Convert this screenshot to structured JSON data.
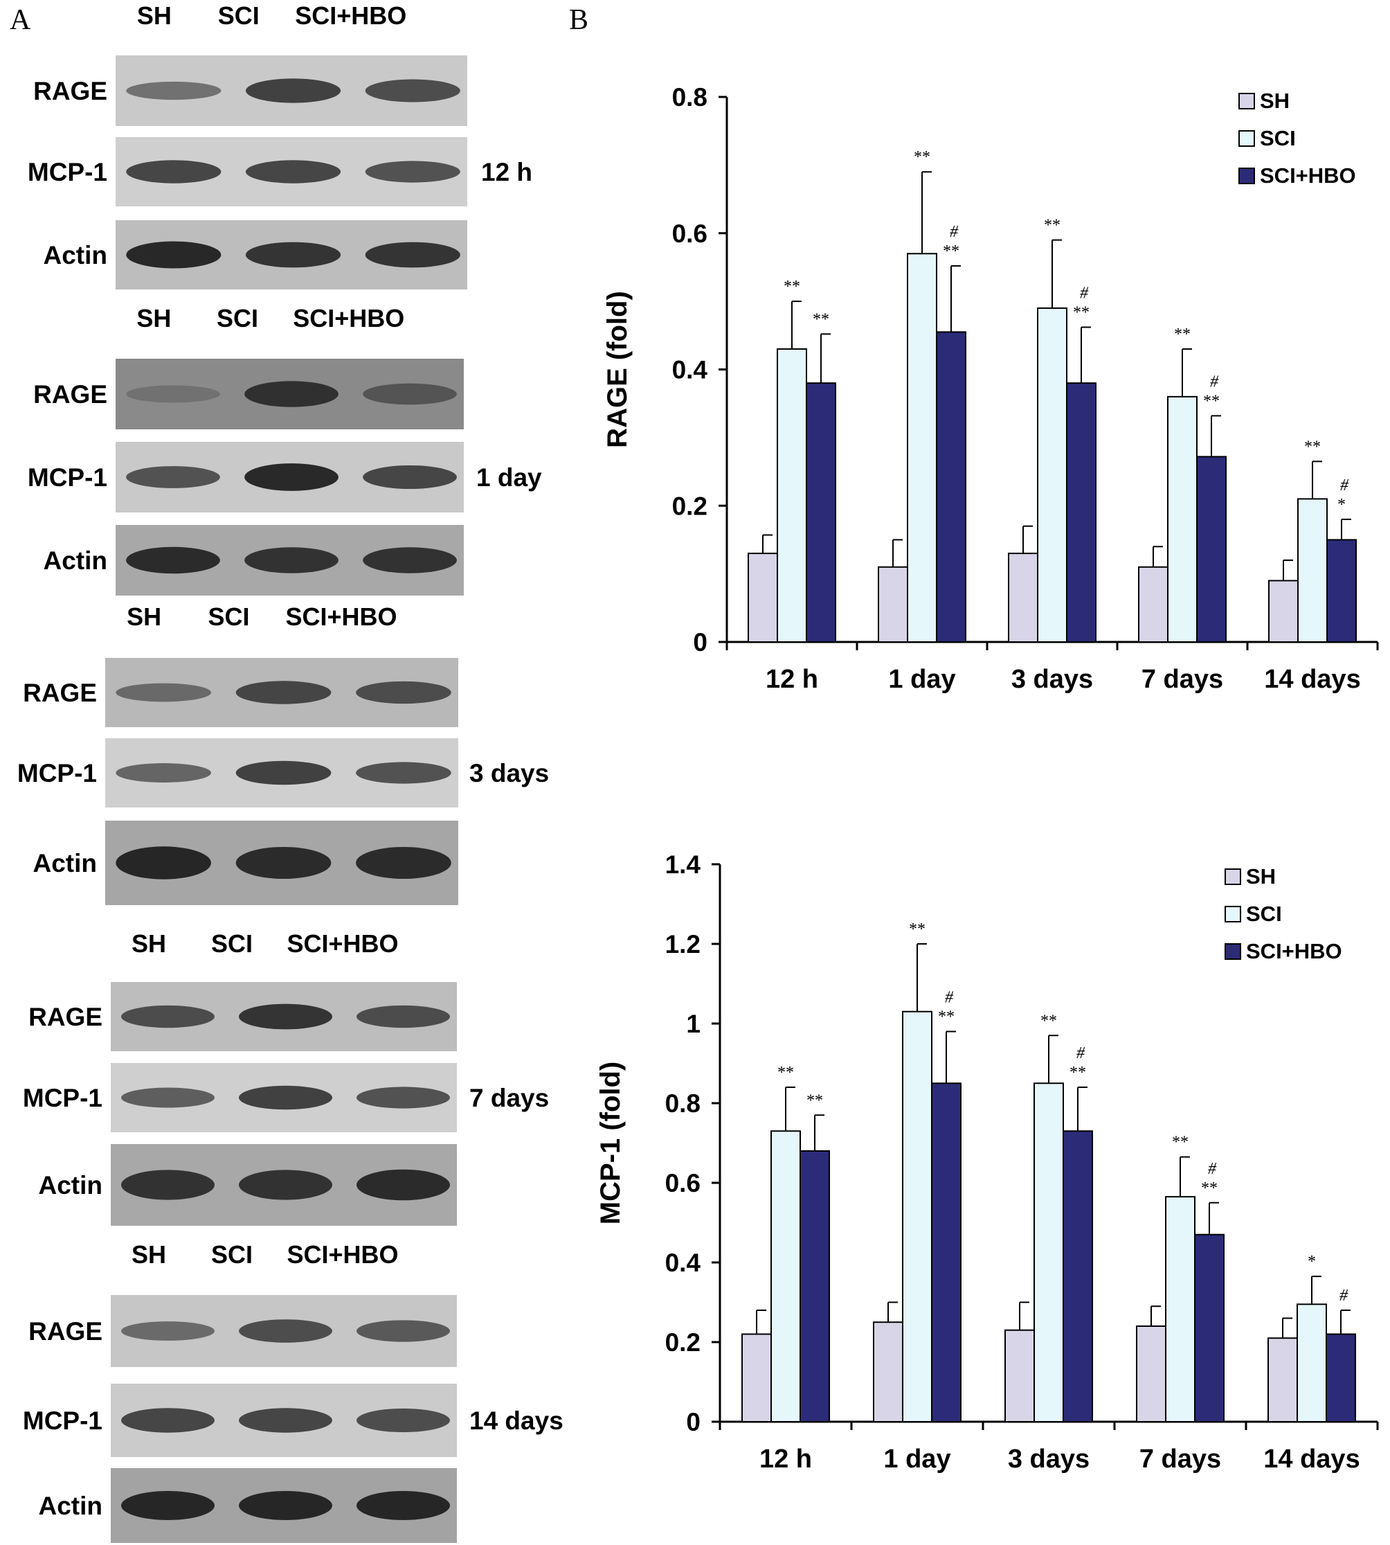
{
  "panel_a": {
    "letter": "A",
    "blocks": [
      {
        "time": "12 h",
        "lanes": [
          "SH",
          "SCI",
          "SCI+HBO"
        ],
        "rows": [
          {
            "label": "RAGE",
            "intensity": [
              0.35,
              0.75,
              0.65
            ],
            "bg": "#c9c9c9"
          },
          {
            "label": "MCP-1",
            "intensity": [
              0.7,
              0.7,
              0.6
            ],
            "bg": "#cfcfcf"
          },
          {
            "label": "Actin",
            "intensity": [
              0.95,
              0.85,
              0.85
            ],
            "bg": "#bdbdbd"
          }
        ]
      },
      {
        "time": "1 day",
        "lanes": [
          "SH",
          "SCI",
          "SCI+HBO"
        ],
        "rows": [
          {
            "label": "RAGE",
            "intensity": [
              0.3,
              0.85,
              0.55
            ],
            "bg": "#8a8a8a"
          },
          {
            "label": "MCP-1",
            "intensity": [
              0.6,
              0.95,
              0.7
            ],
            "bg": "#c9c9c9"
          },
          {
            "label": "Actin",
            "intensity": [
              0.9,
              0.85,
              0.85
            ],
            "bg": "#a8a8a8"
          }
        ]
      },
      {
        "time": "3 days",
        "lanes": [
          "SH",
          "SCI",
          "SCI+HBO"
        ],
        "rows": [
          {
            "label": "RAGE",
            "intensity": [
              0.4,
              0.7,
              0.65
            ],
            "bg": "#b8b8b8"
          },
          {
            "label": "MCP-1",
            "intensity": [
              0.45,
              0.75,
              0.6
            ],
            "bg": "#cfcfcf"
          },
          {
            "label": "Actin",
            "intensity": [
              0.95,
              0.9,
              0.9
            ],
            "bg": "#a6a6a6"
          }
        ]
      },
      {
        "time": "7 days",
        "lanes": [
          "SH",
          "SCI",
          "SCI+HBO"
        ],
        "rows": [
          {
            "label": "RAGE",
            "intensity": [
              0.65,
              0.85,
              0.65
            ],
            "bg": "#bdbdbd"
          },
          {
            "label": "MCP-1",
            "intensity": [
              0.5,
              0.75,
              0.6
            ],
            "bg": "#cfcfcf"
          },
          {
            "label": "Actin",
            "intensity": [
              0.85,
              0.85,
              0.9
            ],
            "bg": "#a8a8a8"
          }
        ]
      },
      {
        "time": "14 days",
        "lanes": [
          "SH",
          "SCI",
          "SCI+HBO"
        ],
        "rows": [
          {
            "label": "RAGE",
            "intensity": [
              0.4,
              0.65,
              0.55
            ],
            "bg": "#c6c6c6"
          },
          {
            "label": "MCP-1",
            "intensity": [
              0.7,
              0.7,
              0.65
            ],
            "bg": "#cbcbcb"
          },
          {
            "label": "Actin",
            "intensity": [
              0.95,
              0.95,
              0.95
            ],
            "bg": "#a3a3a3"
          }
        ]
      }
    ]
  },
  "panel_b": {
    "letter": "B"
  },
  "colors": {
    "SH": "#d9d5e8",
    "SCI": "#e6f7fc",
    "SCI+HBO": "#2b2b78"
  },
  "chart_data": [
    {
      "type": "bar",
      "title": "",
      "xlabel": "",
      "ylabel": "RAGE (fold)",
      "ylim": [
        0,
        0.8
      ],
      "yticks": [
        0,
        0.2,
        0.4,
        0.6,
        0.8
      ],
      "ytick_labels": [
        "0",
        "0.2",
        "0.4",
        "0.6",
        "0.8"
      ],
      "categories": [
        "12 h",
        "1 day",
        "3 days",
        "7 days",
        "14 days"
      ],
      "legend": "top-right",
      "series": [
        {
          "name": "SH",
          "values": [
            0.13,
            0.11,
            0.13,
            0.11,
            0.09
          ],
          "errors": [
            0.027,
            0.04,
            0.04,
            0.03,
            0.03
          ],
          "marks": [
            "",
            "",
            "",
            "",
            ""
          ]
        },
        {
          "name": "SCI",
          "values": [
            0.43,
            0.57,
            0.49,
            0.36,
            0.21
          ],
          "errors": [
            0.07,
            0.12,
            0.1,
            0.07,
            0.055
          ],
          "marks": [
            "**",
            "**",
            "**",
            "**",
            "**"
          ]
        },
        {
          "name": "SCI+HBO",
          "values": [
            0.38,
            0.455,
            0.38,
            0.272,
            0.15
          ],
          "errors": [
            0.072,
            0.097,
            0.082,
            0.06,
            0.03
          ],
          "marks": [
            "**",
            "#\n**",
            "#\n**",
            "#\n**",
            "#\n*"
          ]
        }
      ]
    },
    {
      "type": "bar",
      "title": "",
      "xlabel": "",
      "ylabel": "MCP-1 (fold)",
      "ylim": [
        0,
        1.4
      ],
      "yticks": [
        0,
        0.2,
        0.4,
        0.6,
        0.8,
        1.0,
        1.2,
        1.4
      ],
      "ytick_labels": [
        "0",
        "0.2",
        "0.4",
        "0.6",
        "0.8",
        "1",
        "1.2",
        "1.4"
      ],
      "categories": [
        "12 h",
        "1 day",
        "3 days",
        "7 days",
        "14 days"
      ],
      "legend": "top-right",
      "series": [
        {
          "name": "SH",
          "values": [
            0.22,
            0.25,
            0.23,
            0.24,
            0.21
          ],
          "errors": [
            0.06,
            0.05,
            0.07,
            0.05,
            0.05
          ],
          "marks": [
            "",
            "",
            "",
            "",
            ""
          ]
        },
        {
          "name": "SCI",
          "values": [
            0.73,
            1.03,
            0.85,
            0.565,
            0.295
          ],
          "errors": [
            0.11,
            0.17,
            0.12,
            0.1,
            0.07
          ],
          "marks": [
            "**",
            "**",
            "**",
            "**",
            "*"
          ]
        },
        {
          "name": "SCI+HBO",
          "values": [
            0.68,
            0.85,
            0.73,
            0.47,
            0.22
          ],
          "errors": [
            0.09,
            0.13,
            0.11,
            0.08,
            0.06
          ],
          "marks": [
            "**",
            "#\n**",
            "#\n**",
            "#\n**",
            "#"
          ]
        }
      ]
    }
  ]
}
